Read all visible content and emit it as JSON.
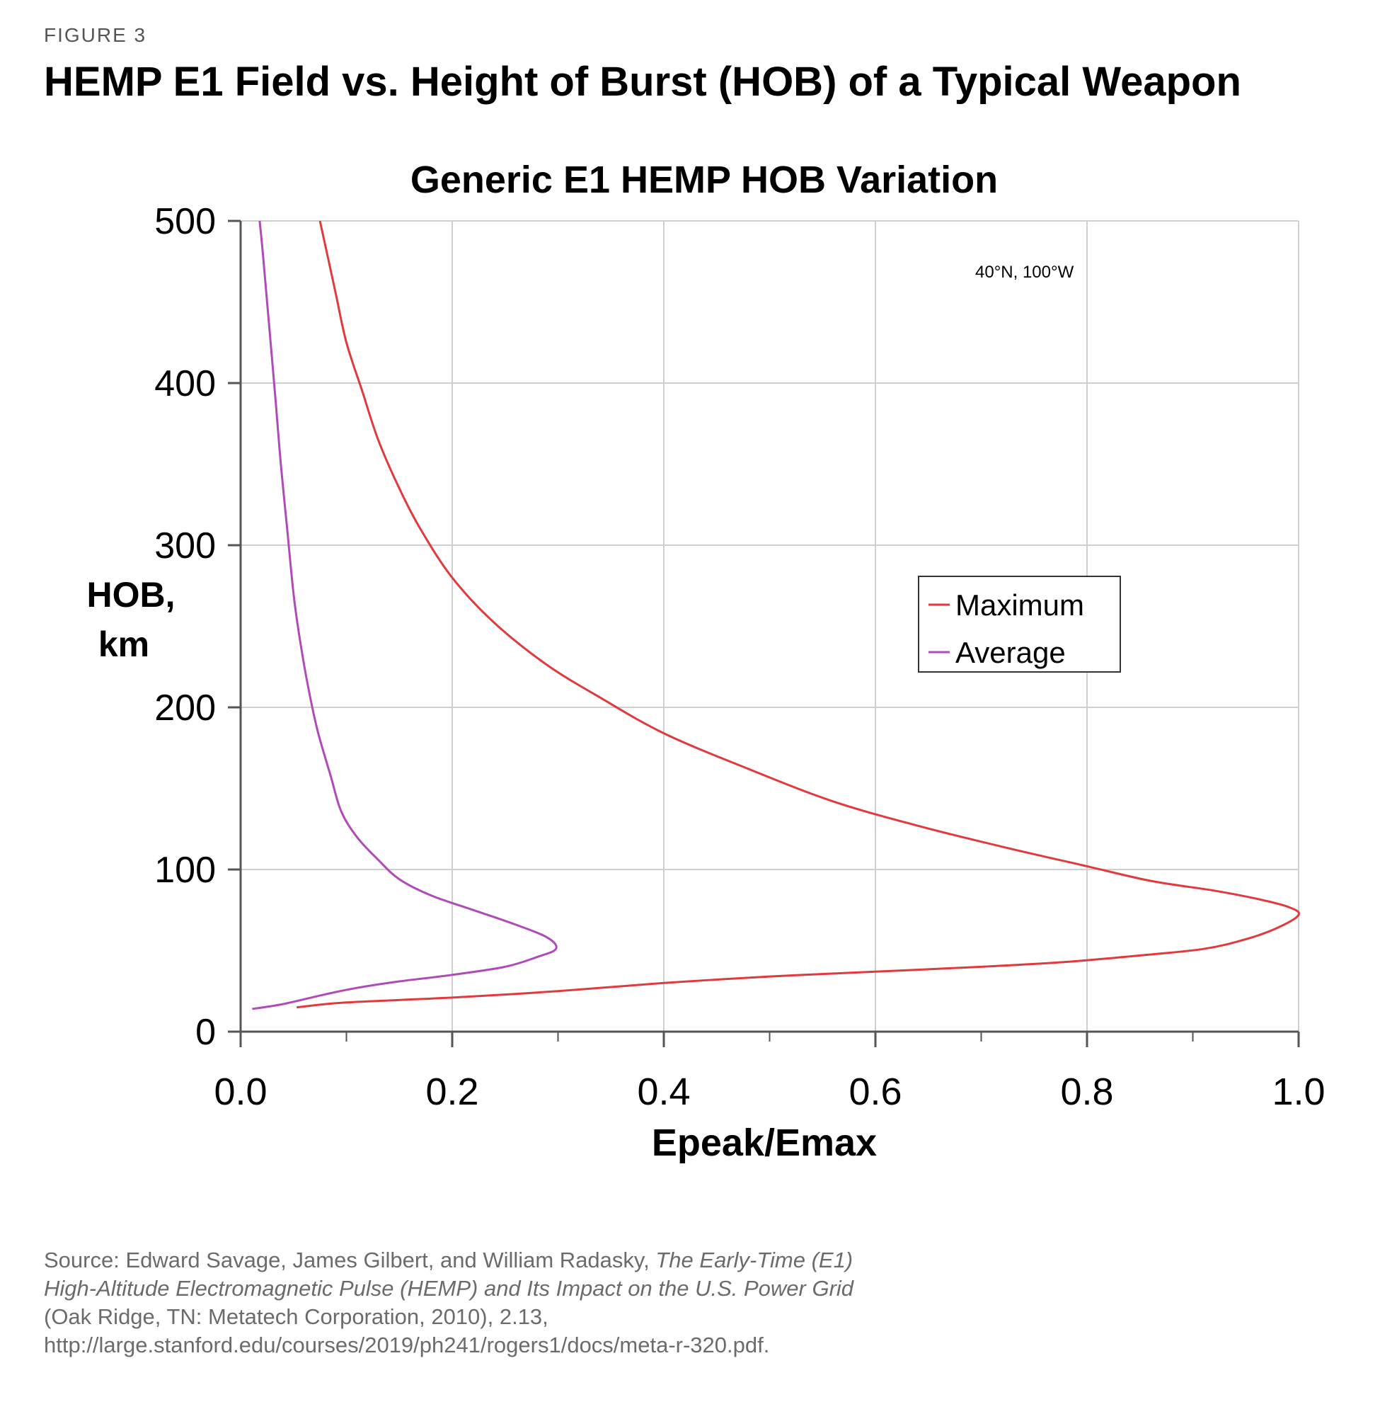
{
  "figure": {
    "label": "FIGURE 3",
    "title": "HEMP E1 Field vs. Height of Burst (HOB) of a Typical Weapon"
  },
  "source": {
    "prefix": "Source: Edward Savage, James Gilbert, and William Radasky,",
    "italic_title": "The Early-Time (E1) High-Altitude Electromagnetic Pulse (HEMP) and Its Impact on the U.S. Power Grid",
    "suffix": " (Oak Ridge, TN: Metatech Corporation, 2010), 2.13, http://large.stanford.edu/courses/2019/ph241/rogers1/docs/meta-r-320.pdf."
  },
  "chart_data": {
    "type": "line",
    "title": "Generic E1 HEMP HOB Variation",
    "xlabel": "Epeak/Emax",
    "ylabel_lines": [
      "HOB,",
      "km"
    ],
    "xlim": [
      0.0,
      1.0
    ],
    "ylim": [
      0,
      500
    ],
    "x_ticks": [
      "0.0",
      "0.2",
      "0.4",
      "0.6",
      "0.8",
      "1.0"
    ],
    "x_tick_values": [
      0.0,
      0.2,
      0.4,
      0.6,
      0.8,
      1.0
    ],
    "x_minor_tick_values": [
      0.1,
      0.3,
      0.5,
      0.7,
      0.9
    ],
    "y_ticks": [
      "0",
      "100",
      "200",
      "300",
      "400",
      "500"
    ],
    "y_tick_values": [
      0,
      100,
      200,
      300,
      400,
      500
    ],
    "grid": true,
    "legend_position": "right-middle",
    "annotation": "40°N, 100°W",
    "series": [
      {
        "name": "Maximum",
        "color": "#e0393e",
        "points": [
          [
            0.053,
            15
          ],
          [
            0.1,
            18
          ],
          [
            0.2,
            21
          ],
          [
            0.3,
            25
          ],
          [
            0.4,
            30
          ],
          [
            0.5,
            34
          ],
          [
            0.6,
            37
          ],
          [
            0.7,
            40
          ],
          [
            0.78,
            43
          ],
          [
            0.85,
            47
          ],
          [
            0.91,
            51
          ],
          [
            0.95,
            57
          ],
          [
            0.98,
            64
          ],
          [
            1.0,
            72
          ],
          [
            0.99,
            77
          ],
          [
            0.96,
            82
          ],
          [
            0.92,
            87
          ],
          [
            0.86,
            93
          ],
          [
            0.8,
            102
          ],
          [
            0.72,
            114
          ],
          [
            0.64,
            127
          ],
          [
            0.56,
            142
          ],
          [
            0.48,
            162
          ],
          [
            0.4,
            184
          ],
          [
            0.34,
            206
          ],
          [
            0.29,
            226
          ],
          [
            0.24,
            252
          ],
          [
            0.2,
            280
          ],
          [
            0.17,
            310
          ],
          [
            0.15,
            335
          ],
          [
            0.13,
            365
          ],
          [
            0.115,
            395
          ],
          [
            0.1,
            425
          ],
          [
            0.09,
            455
          ],
          [
            0.08,
            485
          ],
          [
            0.075,
            500
          ]
        ]
      },
      {
        "name": "Average",
        "color": "#b04ab8",
        "points": [
          [
            0.011,
            14
          ],
          [
            0.04,
            17
          ],
          [
            0.08,
            23
          ],
          [
            0.11,
            27
          ],
          [
            0.15,
            31
          ],
          [
            0.2,
            35
          ],
          [
            0.25,
            40
          ],
          [
            0.28,
            46
          ],
          [
            0.298,
            51
          ],
          [
            0.29,
            58
          ],
          [
            0.26,
            66
          ],
          [
            0.22,
            75
          ],
          [
            0.18,
            84
          ],
          [
            0.15,
            94
          ],
          [
            0.13,
            106
          ],
          [
            0.11,
            120
          ],
          [
            0.095,
            136
          ],
          [
            0.085,
            158
          ],
          [
            0.073,
            185
          ],
          [
            0.064,
            212
          ],
          [
            0.056,
            242
          ],
          [
            0.05,
            270
          ],
          [
            0.044,
            310
          ],
          [
            0.038,
            350
          ],
          [
            0.033,
            390
          ],
          [
            0.029,
            420
          ],
          [
            0.025,
            450
          ],
          [
            0.021,
            480
          ],
          [
            0.018,
            500
          ]
        ]
      }
    ]
  }
}
